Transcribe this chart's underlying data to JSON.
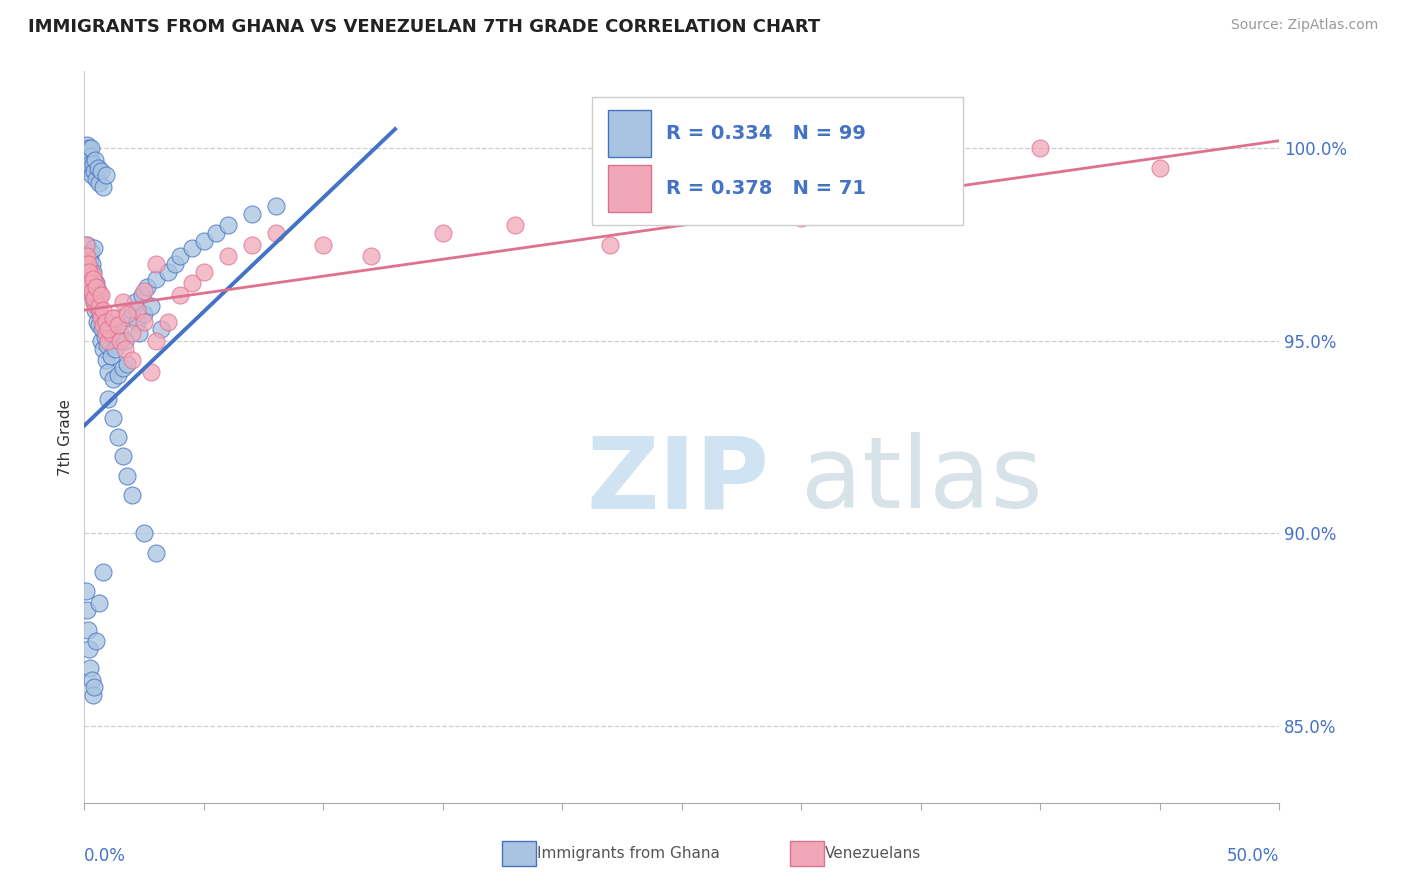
{
  "title": "IMMIGRANTS FROM GHANA VS VENEZUELAN 7TH GRADE CORRELATION CHART",
  "source_text": "Source: ZipAtlas.com",
  "ylabel": "7th Grade",
  "ylabel_right_ticks": [
    "85.0%",
    "90.0%",
    "95.0%",
    "100.0%"
  ],
  "ylabel_right_values": [
    85.0,
    90.0,
    95.0,
    100.0
  ],
  "xlim": [
    0.0,
    50.0
  ],
  "ylim": [
    83.0,
    102.0
  ],
  "legend_r1": "R = 0.334",
  "legend_n1": "N = 99",
  "legend_r2": "R = 0.378",
  "legend_n2": "N = 71",
  "color_ghana": "#a8c4e0",
  "color_venezuela": "#f0a8b8",
  "color_ghana_line": "#4472c4",
  "color_venezuela_line": "#e07090",
  "color_text_blue": "#4472c4",
  "ghana_trendline_x": [
    0.0,
    13.0
  ],
  "ghana_trendline_y": [
    92.8,
    100.5
  ],
  "venezuela_trendline_x": [
    0.0,
    50.0
  ],
  "venezuela_trendline_y": [
    95.8,
    100.2
  ],
  "ghana_x": [
    0.05,
    0.08,
    0.1,
    0.12,
    0.15,
    0.18,
    0.2,
    0.22,
    0.25,
    0.28,
    0.3,
    0.32,
    0.35,
    0.38,
    0.4,
    0.42,
    0.45,
    0.48,
    0.5,
    0.52,
    0.55,
    0.58,
    0.6,
    0.65,
    0.7,
    0.75,
    0.8,
    0.85,
    0.9,
    0.95,
    1.0,
    1.1,
    1.2,
    1.3,
    1.4,
    1.5,
    1.6,
    1.7,
    1.8,
    1.9,
    2.0,
    2.1,
    2.2,
    2.3,
    2.4,
    2.5,
    2.6,
    2.8,
    3.0,
    3.2,
    3.5,
    3.8,
    4.0,
    4.5,
    5.0,
    5.5,
    6.0,
    7.0,
    8.0,
    0.05,
    0.07,
    0.1,
    0.12,
    0.15,
    0.18,
    0.2,
    0.22,
    0.25,
    0.28,
    0.3,
    0.35,
    0.4,
    0.45,
    0.5,
    0.55,
    0.6,
    0.7,
    0.8,
    0.9,
    1.0,
    1.2,
    1.4,
    1.6,
    1.8,
    2.0,
    2.5,
    3.0,
    0.08,
    0.1,
    0.15,
    0.2,
    0.25,
    0.3,
    0.35,
    0.4,
    0.5,
    0.6,
    0.8
  ],
  "ghana_y": [
    96.5,
    97.2,
    96.8,
    97.5,
    97.0,
    96.3,
    96.9,
    97.1,
    96.6,
    97.3,
    96.4,
    97.0,
    96.2,
    96.8,
    96.0,
    97.4,
    95.8,
    96.5,
    96.1,
    95.5,
    95.9,
    96.3,
    95.4,
    95.7,
    95.0,
    95.3,
    94.8,
    95.1,
    94.5,
    94.9,
    94.2,
    94.6,
    94.0,
    94.8,
    94.1,
    95.2,
    94.3,
    95.0,
    94.4,
    95.6,
    95.8,
    96.0,
    95.5,
    95.2,
    96.2,
    95.7,
    96.4,
    95.9,
    96.6,
    95.3,
    96.8,
    97.0,
    97.2,
    97.4,
    97.6,
    97.8,
    98.0,
    98.3,
    98.5,
    99.8,
    100.0,
    99.9,
    100.1,
    99.7,
    100.0,
    99.5,
    99.8,
    99.6,
    100.0,
    99.3,
    99.6,
    99.4,
    99.7,
    99.2,
    99.5,
    99.1,
    99.4,
    99.0,
    99.3,
    93.5,
    93.0,
    92.5,
    92.0,
    91.5,
    91.0,
    90.0,
    89.5,
    88.5,
    88.0,
    87.5,
    87.0,
    86.5,
    86.2,
    85.8,
    86.0,
    87.2,
    88.2,
    89.0
  ],
  "venezuela_x": [
    0.05,
    0.08,
    0.1,
    0.12,
    0.15,
    0.18,
    0.2,
    0.25,
    0.3,
    0.35,
    0.4,
    0.45,
    0.5,
    0.55,
    0.6,
    0.65,
    0.7,
    0.8,
    0.9,
    1.0,
    1.1,
    1.2,
    1.3,
    1.5,
    1.7,
    2.0,
    2.2,
    2.5,
    2.8,
    3.0,
    3.5,
    4.0,
    4.5,
    5.0,
    6.0,
    7.0,
    8.0,
    10.0,
    12.0,
    15.0,
    18.0,
    22.0,
    30.0,
    40.0,
    45.0,
    0.05,
    0.1,
    0.15,
    0.2,
    0.25,
    0.3,
    0.35,
    0.4,
    0.5,
    0.6,
    0.7,
    0.8,
    0.9,
    1.0,
    1.2,
    1.4,
    1.6,
    1.8,
    2.0,
    2.5,
    3.0
  ],
  "venezuela_y": [
    97.2,
    96.8,
    97.0,
    96.5,
    96.9,
    96.4,
    96.8,
    96.5,
    96.2,
    96.7,
    96.0,
    96.5,
    95.9,
    96.3,
    95.8,
    96.2,
    95.6,
    95.4,
    95.2,
    95.0,
    95.2,
    95.4,
    95.6,
    95.0,
    94.8,
    94.5,
    95.8,
    95.5,
    94.2,
    95.0,
    95.5,
    96.2,
    96.5,
    96.8,
    97.2,
    97.5,
    97.8,
    97.5,
    97.2,
    97.8,
    98.0,
    97.5,
    98.2,
    100.0,
    99.5,
    97.5,
    97.2,
    97.0,
    96.8,
    96.5,
    96.3,
    96.6,
    96.1,
    96.4,
    95.9,
    96.2,
    95.8,
    95.5,
    95.3,
    95.6,
    95.4,
    96.0,
    95.7,
    95.2,
    96.3,
    97.0
  ]
}
